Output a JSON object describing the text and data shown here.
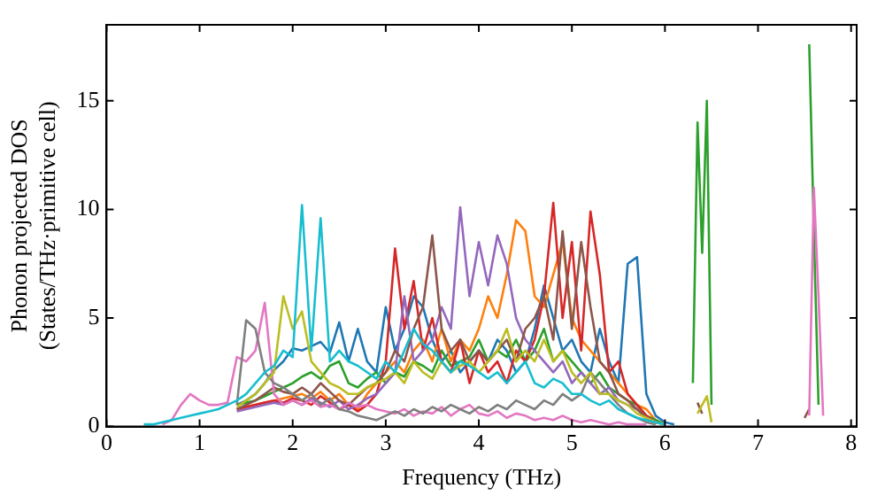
{
  "chart_data": {
    "type": "line",
    "xlabel": "Frequency (THz)",
    "ylabel": "Phonon projected DOS\n(States/THz·primitive cell)",
    "xlim": [
      0,
      8.06
    ],
    "ylim": [
      0,
      18.5
    ],
    "xticks": [
      0,
      1,
      2,
      3,
      4,
      5,
      6,
      7,
      8
    ],
    "yticks": [
      0,
      5,
      10,
      15
    ],
    "grid": false,
    "legend": false,
    "marker": "none",
    "line_style": "solid",
    "x": [
      0.4,
      0.5,
      0.6,
      0.7,
      0.8,
      0.9,
      1,
      1.1,
      1.2,
      1.3,
      1.4,
      1.5,
      1.6,
      1.7,
      1.8,
      1.9,
      2,
      2.1,
      2.2,
      2.3,
      2.4,
      2.5,
      2.6,
      2.7,
      2.8,
      2.9,
      3,
      3.1,
      3.2,
      3.3,
      3.4,
      3.5,
      3.6,
      3.7,
      3.8,
      3.9,
      4,
      4.1,
      4.2,
      4.3,
      4.4,
      4.5,
      4.6,
      4.7,
      4.8,
      4.9,
      5,
      5.1,
      5.2,
      5.3,
      5.4,
      5.5,
      5.6,
      5.7,
      5.8,
      5.9,
      6,
      6.1,
      6.3,
      6.35,
      6.4,
      6.45,
      6.5,
      7.5,
      7.55,
      7.6,
      7.65,
      7.7
    ],
    "series": [
      {
        "color": "#1f77b4",
        "values": [
          null,
          null,
          null,
          null,
          null,
          null,
          null,
          null,
          null,
          null,
          1.0,
          1.2,
          1.5,
          2.0,
          2.6,
          3.0,
          3.6,
          3.5,
          3.7,
          3.9,
          3.4,
          4.8,
          3.0,
          4.5,
          3.0,
          2.5,
          5.5,
          3.5,
          4.5,
          6.0,
          5.5,
          4.0,
          3.0,
          3.5,
          2.5,
          3.0,
          3.5,
          3.0,
          4.0,
          3.5,
          2.5,
          3.0,
          4.5,
          6.5,
          5.0,
          3.5,
          4.0,
          3.0,
          2.5,
          4.5,
          3.0,
          2.0,
          7.5,
          7.8,
          1.5,
          0.5,
          0.2,
          0.1,
          null,
          null,
          null,
          null,
          null,
          null,
          null,
          null,
          null,
          null
        ]
      },
      {
        "color": "#ff7f0e",
        "values": [
          null,
          null,
          null,
          null,
          null,
          null,
          null,
          null,
          null,
          null,
          0.8,
          0.9,
          1.0,
          1.1,
          1.2,
          1.3,
          1.4,
          1.5,
          1.3,
          1.6,
          1.2,
          1.5,
          1.0,
          0.8,
          1.5,
          2.0,
          2.5,
          3.0,
          2.5,
          3.5,
          4.0,
          3.0,
          4.5,
          3.0,
          4.0,
          3.5,
          4.5,
          6.0,
          5.0,
          7.0,
          9.5,
          9.0,
          6.0,
          5.5,
          7.0,
          8.5,
          5.0,
          4.0,
          3.5,
          3.0,
          2.5,
          2.0,
          1.5,
          1.0,
          0.8,
          0.3,
          0.1,
          null,
          null,
          null,
          null,
          null,
          null,
          null,
          null,
          null,
          null,
          null
        ]
      },
      {
        "color": "#2ca02c",
        "values": [
          null,
          null,
          null,
          null,
          null,
          null,
          null,
          null,
          null,
          null,
          1.0,
          1.1,
          1.2,
          1.4,
          1.6,
          1.8,
          2.0,
          2.3,
          2.5,
          2.2,
          2.8,
          3.0,
          2.0,
          1.8,
          2.2,
          2.5,
          2.0,
          2.5,
          2.3,
          3.0,
          2.8,
          2.5,
          3.5,
          2.8,
          3.0,
          3.2,
          4.0,
          3.0,
          3.5,
          3.2,
          4.0,
          3.0,
          3.5,
          4.5,
          3.0,
          3.5,
          3.0,
          2.5,
          2.0,
          2.5,
          1.8,
          1.5,
          1.2,
          1.0,
          0.5,
          0.3,
          0.1,
          null,
          2.0,
          14.0,
          8.0,
          15.0,
          1.0,
          null,
          17.6,
          9.0,
          1.0,
          null
        ]
      },
      {
        "color": "#d62728",
        "values": [
          null,
          null,
          null,
          null,
          null,
          null,
          null,
          null,
          null,
          null,
          0.8,
          0.9,
          1.0,
          1.1,
          1.2,
          1.1,
          1.3,
          1.2,
          1.0,
          1.4,
          1.1,
          0.8,
          1.0,
          0.7,
          1.0,
          1.5,
          3.0,
          8.2,
          4.5,
          6.7,
          3.5,
          5.0,
          3.0,
          2.5,
          4.0,
          2.0,
          3.5,
          2.5,
          3.0,
          2.0,
          3.5,
          3.0,
          4.0,
          6.0,
          10.3,
          5.0,
          8.5,
          3.5,
          9.9,
          7.0,
          2.5,
          3.0,
          1.5,
          1.0,
          0.5,
          0.2,
          0.1,
          null,
          null,
          null,
          null,
          null,
          null,
          null,
          null,
          null,
          null,
          null
        ]
      },
      {
        "color": "#9467bd",
        "values": [
          null,
          null,
          null,
          null,
          null,
          null,
          null,
          null,
          null,
          null,
          0.7,
          0.8,
          0.9,
          1.0,
          1.1,
          1.0,
          1.2,
          1.0,
          1.3,
          1.1,
          0.9,
          1.2,
          0.8,
          1.0,
          1.3,
          1.5,
          2.0,
          2.5,
          6.0,
          3.0,
          3.5,
          4.0,
          5.5,
          4.5,
          10.1,
          6.0,
          8.5,
          6.5,
          8.8,
          7.5,
          5.0,
          4.0,
          3.5,
          3.0,
          2.5,
          3.0,
          2.0,
          2.5,
          2.0,
          1.5,
          1.8,
          1.2,
          1.0,
          0.8,
          0.4,
          0.2,
          0.1,
          null,
          null,
          null,
          null,
          null,
          null,
          null,
          null,
          null,
          null,
          null
        ]
      },
      {
        "color": "#8c564b",
        "values": [
          null,
          null,
          null,
          null,
          null,
          null,
          null,
          null,
          null,
          null,
          0.8,
          1.0,
          1.2,
          1.5,
          1.8,
          1.6,
          1.5,
          1.8,
          1.5,
          2.0,
          1.6,
          1.2,
          1.0,
          1.4,
          1.8,
          2.0,
          2.5,
          3.5,
          3.0,
          4.5,
          5.5,
          8.8,
          4.5,
          3.5,
          4.0,
          3.0,
          3.5,
          3.0,
          3.5,
          4.0,
          3.0,
          4.5,
          5.0,
          6.0,
          4.0,
          9.0,
          4.5,
          8.5,
          5.5,
          3.0,
          2.5,
          1.5,
          1.2,
          0.8,
          0.4,
          0.2,
          0.1,
          null,
          null,
          1.1,
          0.6,
          null,
          null,
          0.4,
          0.8,
          null,
          null,
          null
        ]
      },
      {
        "color": "#e377c2",
        "values": [
          null,
          null,
          0.1,
          0.3,
          1.0,
          1.5,
          1.2,
          1.0,
          1.0,
          1.1,
          3.2,
          3.0,
          3.5,
          5.7,
          1.5,
          1.0,
          1.2,
          1.0,
          1.2,
          0.9,
          1.0,
          0.8,
          1.1,
          0.9,
          1.0,
          0.8,
          0.7,
          0.6,
          0.8,
          0.5,
          0.7,
          0.6,
          0.9,
          0.5,
          0.8,
          1.0,
          0.6,
          0.5,
          0.7,
          0.4,
          0.6,
          0.5,
          0.3,
          0.4,
          0.3,
          0.5,
          0.3,
          0.2,
          0.3,
          0.2,
          0.1,
          0.2,
          0.1,
          0.1,
          0.1,
          null,
          null,
          null,
          null,
          null,
          null,
          null,
          null,
          null,
          0.5,
          11.0,
          6.0,
          0.5
        ]
      },
      {
        "color": "#7f7f7f",
        "values": [
          null,
          null,
          null,
          null,
          null,
          null,
          null,
          null,
          null,
          null,
          1.0,
          4.9,
          4.5,
          2.5,
          2.0,
          1.8,
          1.5,
          1.2,
          1.5,
          1.0,
          1.3,
          0.8,
          0.7,
          0.5,
          0.4,
          0.3,
          0.5,
          0.7,
          0.5,
          0.8,
          0.6,
          0.9,
          0.7,
          1.0,
          0.8,
          0.6,
          0.9,
          0.7,
          1.0,
          0.8,
          1.2,
          1.0,
          0.8,
          1.2,
          1.0,
          1.5,
          1.2,
          1.5,
          2.5,
          2.0,
          1.5,
          1.0,
          0.6,
          0.4,
          0.2,
          0.1,
          null,
          null,
          null,
          null,
          null,
          null,
          null,
          null,
          null,
          null,
          null,
          null
        ]
      },
      {
        "color": "#bcbd22",
        "values": [
          null,
          null,
          null,
          null,
          null,
          null,
          null,
          null,
          null,
          null,
          0.9,
          1.2,
          1.5,
          2.0,
          2.5,
          6.0,
          4.5,
          5.3,
          3.0,
          2.5,
          2.0,
          1.8,
          1.5,
          1.5,
          1.8,
          2.0,
          2.2,
          2.5,
          2.0,
          3.0,
          2.5,
          2.2,
          3.0,
          2.5,
          2.8,
          3.0,
          2.5,
          3.0,
          3.5,
          4.5,
          3.0,
          3.5,
          3.0,
          4.0,
          3.0,
          3.5,
          2.5,
          2.0,
          2.5,
          1.5,
          1.5,
          1.2,
          1.0,
          0.6,
          0.4,
          0.2,
          0.1,
          null,
          null,
          0.6,
          1.0,
          1.4,
          0.2,
          null,
          null,
          null,
          null,
          null
        ]
      },
      {
        "color": "#17becf",
        "values": [
          0.1,
          0.1,
          0.2,
          0.3,
          0.4,
          0.5,
          0.6,
          0.7,
          0.8,
          1.0,
          1.2,
          1.5,
          2.0,
          2.5,
          2.8,
          3.5,
          3.2,
          10.2,
          3.5,
          9.6,
          3.0,
          3.5,
          3.0,
          2.8,
          2.5,
          2.2,
          3.0,
          2.5,
          3.5,
          4.5,
          3.8,
          3.5,
          3.0,
          2.5,
          3.0,
          2.8,
          2.5,
          2.2,
          2.5,
          2.0,
          2.5,
          3.0,
          2.0,
          1.8,
          2.2,
          2.0,
          1.5,
          1.5,
          1.2,
          1.0,
          1.2,
          0.8,
          0.6,
          0.4,
          0.3,
          0.2,
          0.1,
          null,
          null,
          null,
          null,
          null,
          null,
          null,
          null,
          null,
          null,
          null
        ]
      }
    ]
  }
}
